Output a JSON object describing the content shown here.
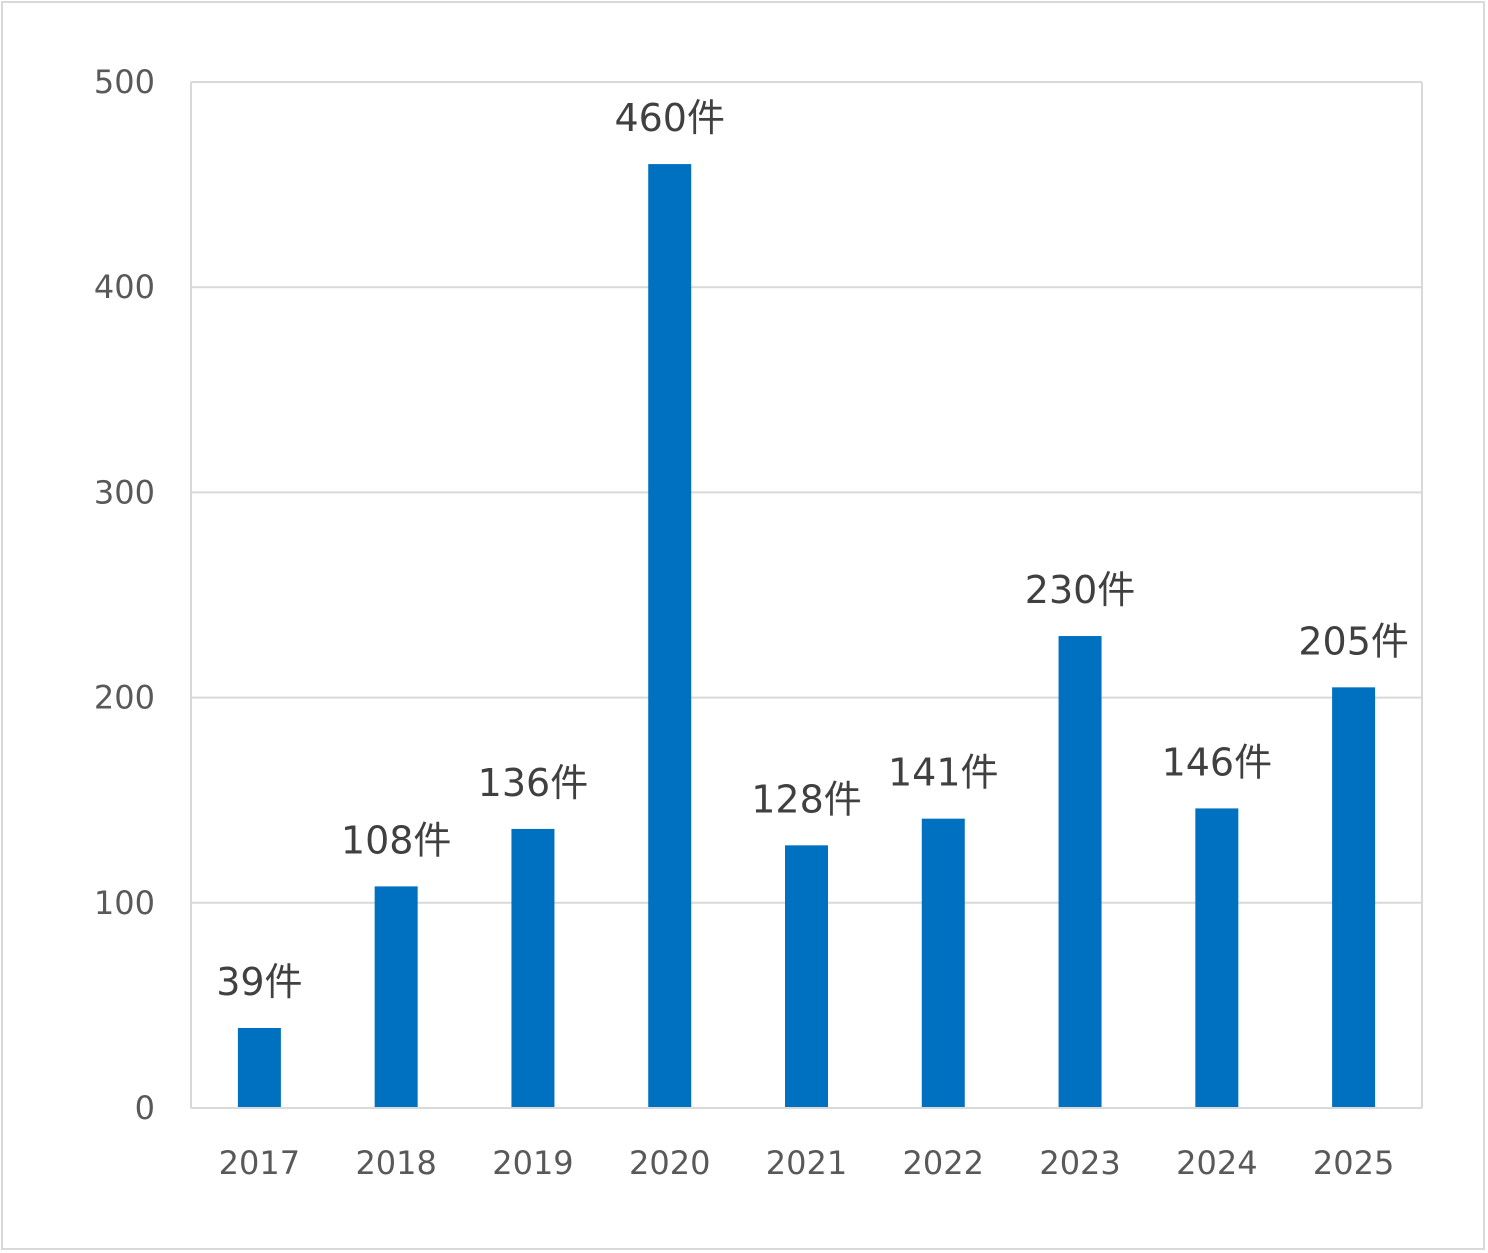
{
  "chart_data": {
    "type": "bar",
    "title": "",
    "xlabel": "",
    "ylabel": "",
    "categories": [
      "2017",
      "2018",
      "2019",
      "2020",
      "2021",
      "2022",
      "2023",
      "2024",
      "2025"
    ],
    "values": [
      39,
      108,
      136,
      460,
      128,
      141,
      230,
      146,
      205
    ],
    "data_labels": [
      "39件",
      "108件",
      "136件",
      "460件",
      "128件",
      "141件",
      "230件",
      "146件",
      "205件"
    ],
    "ylim": [
      0,
      500
    ],
    "yticks": [
      "0",
      "100",
      "200",
      "300",
      "400",
      "500"
    ],
    "grid": true,
    "legend": "none",
    "colors": {
      "bar": "#0070C0",
      "grid": "#d9d9d9",
      "axis_text": "#595959",
      "label_text": "#404040"
    }
  }
}
